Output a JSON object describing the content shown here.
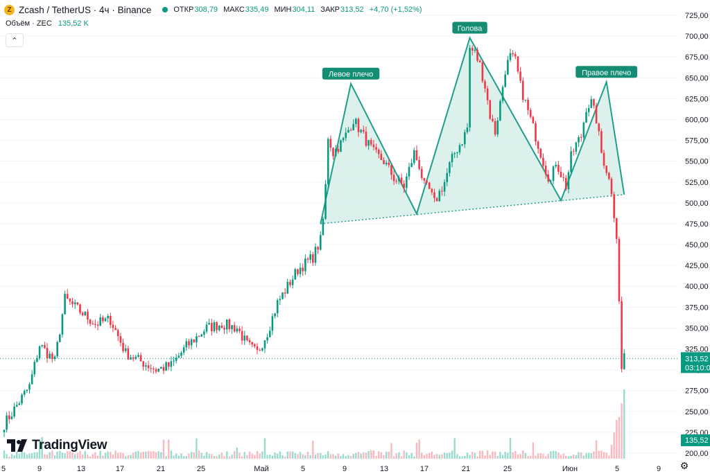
{
  "header": {
    "coin_symbol": "Z",
    "title": "Zcash / TetherUS · 4ч · Binance",
    "ohlc": [
      {
        "label": "ОТКР",
        "value": "308,79"
      },
      {
        "label": "МАКС",
        "value": "335,49"
      },
      {
        "label": "МИН",
        "value": "304,11"
      },
      {
        "label": "ЗАКР",
        "value": "313,52"
      }
    ],
    "change": "+4,70 (+1,52%)",
    "volume_label": "Объём · ZEC",
    "volume_value": "135,52 K",
    "collapse_glyph": "⌃"
  },
  "branding": {
    "logo_text": "TradingView"
  },
  "colors": {
    "up": "#089981",
    "down": "#f23645",
    "pattern": "#1f9e89",
    "pattern_fill": "#d6efe9",
    "label_bg": "#138d74"
  },
  "icons": {
    "settings": "gear-icon",
    "logo": "tradingview-logo-icon"
  },
  "chart_data": {
    "type": "candlestick",
    "ylim": [
      200,
      725
    ],
    "y_ticks": [
      "725,00",
      "700,00",
      "675,00",
      "650,00",
      "625,00",
      "600,00",
      "575,00",
      "550,00",
      "525,00",
      "500,00",
      "475,00",
      "450,00",
      "425,00",
      "400,00",
      "375,00",
      "350,00",
      "325,00",
      "300,00",
      "275,00",
      "250,00",
      "225,00",
      "200,00"
    ],
    "x_ticks": [
      "5",
      "9",
      "13",
      "17",
      "21",
      "25",
      "Май",
      "5",
      "9",
      "13",
      "17",
      "21",
      "25",
      "Июн",
      "5",
      "9"
    ],
    "last_price": {
      "value": 313.52,
      "label": "313,52",
      "countdown": "03:10:0"
    },
    "last_volume_label": "135,52 K",
    "anchors": [
      [
        0,
        235
      ],
      [
        3,
        248
      ],
      [
        6,
        262
      ],
      [
        10,
        280
      ],
      [
        14,
        330
      ],
      [
        20,
        310
      ],
      [
        24,
        385
      ],
      [
        30,
        370
      ],
      [
        36,
        355
      ],
      [
        42,
        360
      ],
      [
        48,
        320
      ],
      [
        54,
        310
      ],
      [
        60,
        300
      ],
      [
        66,
        305
      ],
      [
        72,
        328
      ],
      [
        80,
        350
      ],
      [
        86,
        355
      ],
      [
        92,
        350
      ],
      [
        96,
        330
      ],
      [
        100,
        320
      ],
      [
        104,
        345
      ],
      [
        108,
        380
      ],
      [
        112,
        400
      ],
      [
        116,
        420
      ],
      [
        122,
        435
      ],
      [
        125,
        455
      ],
      [
        126,
        480
      ],
      [
        127,
        520
      ],
      [
        128,
        580
      ],
      [
        130,
        560
      ],
      [
        134,
        575
      ],
      [
        138,
        600
      ],
      [
        142,
        580
      ],
      [
        146,
        560
      ],
      [
        150,
        550
      ],
      [
        154,
        530
      ],
      [
        158,
        520
      ],
      [
        162,
        560
      ],
      [
        164,
        545
      ],
      [
        166,
        520
      ],
      [
        168,
        515
      ],
      [
        170,
        500
      ],
      [
        174,
        525
      ],
      [
        176,
        545
      ],
      [
        178,
        560
      ],
      [
        181,
        575
      ],
      [
        183,
        590
      ],
      [
        184,
        685
      ],
      [
        186,
        680
      ],
      [
        188,
        665
      ],
      [
        190,
        640
      ],
      [
        192,
        605
      ],
      [
        194,
        585
      ],
      [
        196,
        620
      ],
      [
        198,
        660
      ],
      [
        200,
        675
      ],
      [
        202,
        670
      ],
      [
        204,
        640
      ],
      [
        208,
        600
      ],
      [
        212,
        560
      ],
      [
        214,
        540
      ],
      [
        216,
        525
      ],
      [
        218,
        550
      ],
      [
        220,
        535
      ],
      [
        222,
        520
      ],
      [
        224,
        555
      ],
      [
        226,
        570
      ],
      [
        228,
        580
      ],
      [
        230,
        615
      ],
      [
        232,
        620
      ],
      [
        234,
        600
      ],
      [
        236,
        560
      ],
      [
        238,
        540
      ],
      [
        240,
        515
      ],
      [
        242,
        460
      ],
      [
        243,
        380
      ],
      [
        244,
        300
      ],
      [
        245,
        320
      ]
    ],
    "candle_count": 246,
    "volume": {
      "base_level": "low",
      "spikes": "last candles"
    },
    "pattern": {
      "name": "head-and-shoulders",
      "labels": [
        "Левое плечо",
        "Голова",
        "Правое плечо"
      ],
      "points": [
        [
          125,
          475
        ],
        [
          137,
          643
        ],
        [
          163,
          487
        ],
        [
          184,
          698
        ],
        [
          220,
          503
        ],
        [
          238,
          645
        ],
        [
          245,
          510
        ]
      ],
      "neckline": [
        [
          125,
          475
        ],
        [
          245,
          510
        ]
      ]
    }
  }
}
